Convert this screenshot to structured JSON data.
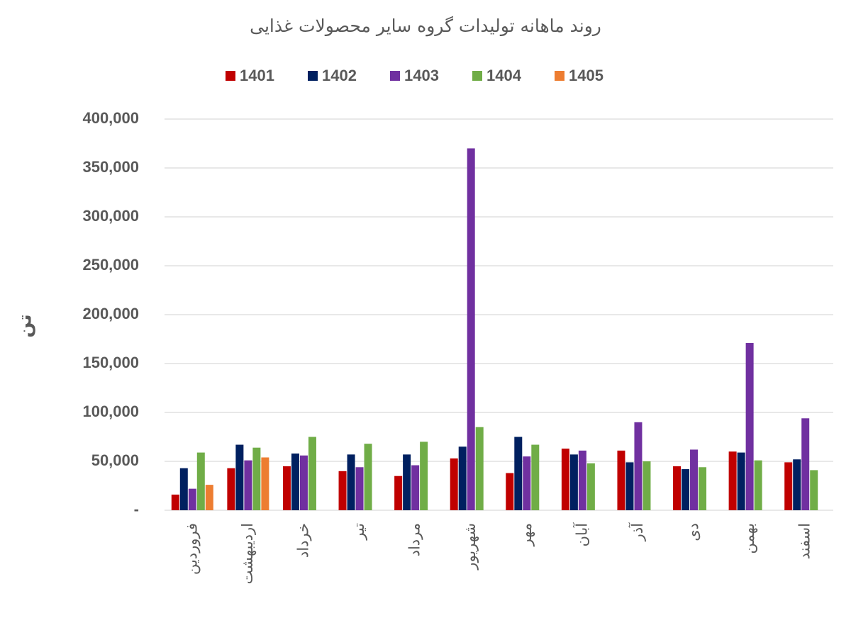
{
  "chart_data": {
    "type": "bar",
    "title": "روند ماهانه تولیدات گروه سایر محصولات غذایی",
    "y_label": "تن",
    "categories": [
      "فروردین",
      "اردیبهشت",
      "خرداد",
      "تیر",
      "مرداد",
      "شهریور",
      "مهر",
      "آبان",
      "آذر",
      "دی",
      "بهمن",
      "اسفند"
    ],
    "series": [
      {
        "name": "1401",
        "color": "#c00000",
        "values": [
          16000,
          43000,
          45000,
          40000,
          35000,
          53000,
          38000,
          63000,
          61000,
          45000,
          60000,
          49000
        ]
      },
      {
        "name": "1402",
        "color": "#002060",
        "values": [
          43000,
          67000,
          58000,
          57000,
          57000,
          65000,
          75000,
          57000,
          49000,
          42000,
          59000,
          52000
        ]
      },
      {
        "name": "1403",
        "color": "#7030a0",
        "values": [
          22000,
          51000,
          56000,
          44000,
          46000,
          370000,
          55000,
          61000,
          90000,
          62000,
          171000,
          94000
        ]
      },
      {
        "name": "1404",
        "color": "#70ad47",
        "values": [
          59000,
          64000,
          75000,
          68000,
          70000,
          85000,
          67000,
          48000,
          50000,
          44000,
          51000,
          41000
        ]
      },
      {
        "name": "1405",
        "color": "#ed7d31",
        "values": [
          26000,
          54000,
          null,
          null,
          null,
          null,
          null,
          null,
          null,
          null,
          null,
          null
        ]
      }
    ],
    "ylim": [
      0,
      400000
    ],
    "yticks": [
      {
        "value": 0,
        "label": "-"
      },
      {
        "value": 50000,
        "label": "50,000"
      },
      {
        "value": 100000,
        "label": "100,000"
      },
      {
        "value": 150000,
        "label": "150,000"
      },
      {
        "value": 200000,
        "label": "200,000"
      },
      {
        "value": 250000,
        "label": "250,000"
      },
      {
        "value": 300000,
        "label": "300,000"
      },
      {
        "value": 350000,
        "label": "350,000"
      },
      {
        "value": 400000,
        "label": "400,000"
      }
    ],
    "grid": true
  }
}
